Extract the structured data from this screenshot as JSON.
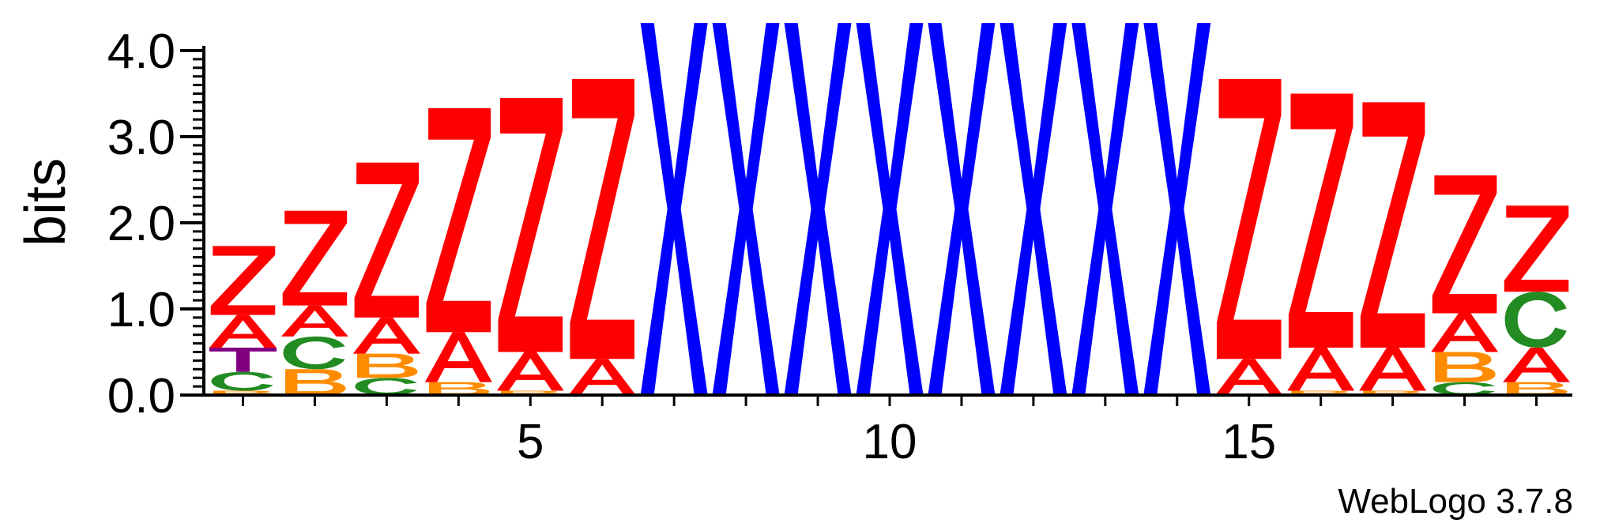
{
  "chart_data": {
    "type": "sequence-logo",
    "ylabel": "bits",
    "ylim": [
      0,
      4.0
    ],
    "xlim": [
      0.5,
      19.5
    ],
    "y_ticks": [
      "0.0",
      "1.0",
      "2.0",
      "3.0",
      "4.0"
    ],
    "x_ticks": [
      "5",
      "10",
      "15"
    ],
    "colors": {
      "A": "#ff0000",
      "Z": "#ff0000",
      "X": "#0000ff",
      "C": "#228b22",
      "B": "#ff8c00",
      "T": "#800080"
    },
    "positions": [
      {
        "pos": 1,
        "stack": [
          {
            "letter": "B",
            "bits": 0.05
          },
          {
            "letter": "C",
            "bits": 0.22
          },
          {
            "letter": "T",
            "bits": 0.28
          },
          {
            "letter": "A",
            "bits": 0.38
          },
          {
            "letter": "Z",
            "bits": 0.8
          }
        ]
      },
      {
        "pos": 2,
        "stack": [
          {
            "letter": "B",
            "bits": 0.3
          },
          {
            "letter": "C",
            "bits": 0.38
          },
          {
            "letter": "A",
            "bits": 0.36
          },
          {
            "letter": "Z",
            "bits": 1.1
          }
        ]
      },
      {
        "pos": 3,
        "stack": [
          {
            "letter": "C",
            "bits": 0.2
          },
          {
            "letter": "B",
            "bits": 0.28
          },
          {
            "letter": "A",
            "bits": 0.42
          },
          {
            "letter": "Z",
            "bits": 1.8
          }
        ]
      },
      {
        "pos": 4,
        "stack": [
          {
            "letter": "B",
            "bits": 0.15
          },
          {
            "letter": "A",
            "bits": 0.58
          },
          {
            "letter": "Z",
            "bits": 2.6
          }
        ]
      },
      {
        "pos": 5,
        "stack": [
          {
            "letter": "B",
            "bits": 0.05
          },
          {
            "letter": "A",
            "bits": 0.45
          },
          {
            "letter": "Z",
            "bits": 2.95
          }
        ]
      },
      {
        "pos": 6,
        "stack": [
          {
            "letter": "A",
            "bits": 0.42
          },
          {
            "letter": "Z",
            "bits": 3.25
          }
        ]
      },
      {
        "pos": 7,
        "stack": [
          {
            "letter": "X",
            "bits": 4.32
          }
        ]
      },
      {
        "pos": 8,
        "stack": [
          {
            "letter": "X",
            "bits": 4.32
          }
        ]
      },
      {
        "pos": 9,
        "stack": [
          {
            "letter": "X",
            "bits": 4.32
          }
        ]
      },
      {
        "pos": 10,
        "stack": [
          {
            "letter": "X",
            "bits": 4.32
          }
        ]
      },
      {
        "pos": 11,
        "stack": [
          {
            "letter": "X",
            "bits": 4.32
          }
        ]
      },
      {
        "pos": 12,
        "stack": [
          {
            "letter": "X",
            "bits": 4.32
          }
        ]
      },
      {
        "pos": 13,
        "stack": [
          {
            "letter": "X",
            "bits": 4.32
          }
        ]
      },
      {
        "pos": 14,
        "stack": [
          {
            "letter": "X",
            "bits": 4.32
          }
        ]
      },
      {
        "pos": 15,
        "stack": [
          {
            "letter": "A",
            "bits": 0.42
          },
          {
            "letter": "Z",
            "bits": 3.25
          }
        ]
      },
      {
        "pos": 16,
        "stack": [
          {
            "letter": "B",
            "bits": 0.05
          },
          {
            "letter": "A",
            "bits": 0.5
          },
          {
            "letter": "Z",
            "bits": 2.95
          }
        ]
      },
      {
        "pos": 17,
        "stack": [
          {
            "letter": "B",
            "bits": 0.05
          },
          {
            "letter": "A",
            "bits": 0.5
          },
          {
            "letter": "Z",
            "bits": 2.85
          }
        ]
      },
      {
        "pos": 18,
        "stack": [
          {
            "letter": "C",
            "bits": 0.15
          },
          {
            "letter": "B",
            "bits": 0.35
          },
          {
            "letter": "A",
            "bits": 0.45
          },
          {
            "letter": "Z",
            "bits": 1.6
          }
        ]
      },
      {
        "pos": 19,
        "stack": [
          {
            "letter": "B",
            "bits": 0.15
          },
          {
            "letter": "A",
            "bits": 0.4
          },
          {
            "letter": "C",
            "bits": 0.65
          },
          {
            "letter": "Z",
            "bits": 1.0
          }
        ]
      }
    ]
  },
  "credit": "WebLogo 3.7.8"
}
